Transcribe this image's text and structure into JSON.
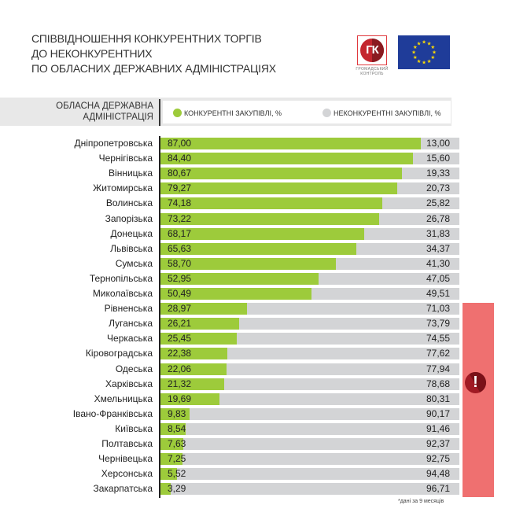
{
  "header": {
    "title_lines": [
      "СПІВВІДНОШЕННЯ КОНКУРЕНТНИХ ТОРГІВ",
      "ДО НЕКОНКУРЕНТНИХ",
      "ПО ОБЛАСНИХ ДЕРЖАВНИХ АДМІНІСТРАЦІЯХ"
    ],
    "logo_text": "ГК",
    "logo_caption": [
      "ГРОМАДСЬКИЙ",
      "КОНТРОЛЬ"
    ]
  },
  "colors": {
    "competitive": "#9dcb3b",
    "noncompetitive": "#d3d4d6",
    "alert": "#ef7070",
    "alert_icon": "#a01a24",
    "eu_blue": "#1f3c99",
    "eu_star": "#ffdd00"
  },
  "chart_data": {
    "type": "bar",
    "stacked": true,
    "orientation": "horizontal",
    "title": "СПІВВІДНОШЕННЯ КОНКУРЕНТНИХ ТОРГІВ ДО НЕКОНКУРЕНТНИХ ПО ОБЛАСНИХ ДЕРЖАВНИХ АДМІНІСТРАЦІЯХ",
    "category_header": [
      "ОБЛАСНА ДЕРЖАВНА",
      "АДМІНІСТРАЦІЯ"
    ],
    "xlim": [
      0,
      100
    ],
    "legend_position": "top",
    "categories": [
      "Дніпропетровська",
      "Чернігівська",
      "Вінницька",
      "Житомирська",
      "Волинська",
      "Запорізька",
      "Донецька",
      "Львівська",
      "Сумська",
      "Тернопільська",
      "Миколаївська",
      "Рівненська",
      "Луганська",
      "Черкаська",
      "Кіровоградська",
      "Одеська",
      "Харківська",
      "Хмельницька",
      "Івано-Франківська",
      "Київська",
      "Полтавська",
      "Чернівецька",
      "Херсонська",
      "Закарпатська"
    ],
    "series": [
      {
        "name": "КОНКУРЕНТНІ ЗАКУПІВЛІ, %",
        "values": [
          87.0,
          84.4,
          80.67,
          79.27,
          74.18,
          73.22,
          68.17,
          65.63,
          58.7,
          52.95,
          50.49,
          28.97,
          26.21,
          25.45,
          22.38,
          22.06,
          21.32,
          19.69,
          9.83,
          8.54,
          7.63,
          7.25,
          5.52,
          3.29
        ],
        "labels": [
          "87,00",
          "84,40",
          "80,67",
          "79,27",
          "74,18",
          "73,22",
          "68,17",
          "65,63",
          "58,70",
          "52,95",
          "50,49",
          "28,97",
          "26,21",
          "25,45",
          "22,38",
          "22,06",
          "21,32",
          "19,69",
          "9,83",
          "8,54",
          "7,63",
          "7,25",
          "5,52",
          "3,29"
        ]
      },
      {
        "name": "НЕКОНКУРЕНТНІ ЗАКУПІВЛІ, %",
        "values": [
          13.0,
          15.6,
          19.33,
          20.73,
          25.82,
          26.78,
          31.83,
          34.37,
          41.3,
          47.05,
          49.51,
          71.03,
          73.79,
          74.55,
          77.62,
          77.94,
          78.68,
          80.31,
          90.17,
          91.46,
          92.37,
          92.75,
          94.48,
          96.71
        ],
        "labels": [
          "13,00",
          "15,60",
          "19,33",
          "20,73",
          "25,82",
          "26,78",
          "31,83",
          "34,37",
          "41,30",
          "47,05",
          "49,51",
          "71,03",
          "73,79",
          "74,55",
          "77,62",
          "77,94",
          "78,68",
          "80,31",
          "90,17",
          "91,46",
          "92,37",
          "92,75",
          "94,48",
          "96,71"
        ]
      }
    ],
    "highlight": {
      "from_category": "Рівненська",
      "to_category": "Закарпатська",
      "icon": "exclamation-icon",
      "symbol": "!"
    },
    "footnote": "*дані за 9 месяців"
  }
}
